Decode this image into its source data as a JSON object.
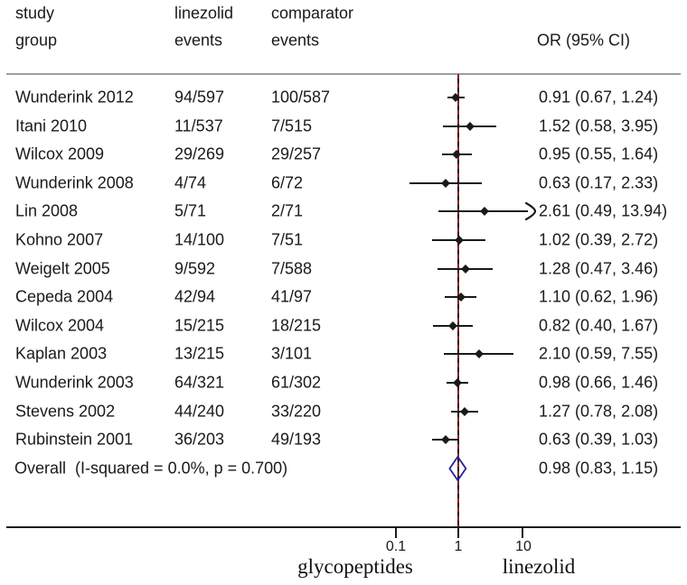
{
  "header": {
    "study_line1": "study",
    "study_line2": "group",
    "linezolid_line1": "linezolid",
    "linezolid_line2": "events",
    "comparator_line1": "comparator",
    "comparator_line2": "events",
    "or_header": "OR (95% CI)"
  },
  "chart_data": {
    "type": "forest",
    "effect_measure": "OR",
    "x_axis": {
      "scale": "log10",
      "tick_values": [
        0.1,
        1,
        10
      ],
      "tick_labels": [
        "0.1",
        "1",
        "10"
      ],
      "null_line_value": 1,
      "left_label": "glycopeptides",
      "right_label": "linezolid"
    },
    "studies": [
      {
        "name": "Wunderink 2012",
        "linezolid": "94/597",
        "comparator": "100/587",
        "or": 0.91,
        "ci_low": 0.67,
        "ci_high": 1.24,
        "or_label": "0.91 (0.67, 1.24)"
      },
      {
        "name": "Itani 2010",
        "linezolid": "11/537",
        "comparator": "7/515",
        "or": 1.52,
        "ci_low": 0.58,
        "ci_high": 3.95,
        "or_label": "1.52 (0.58, 3.95)"
      },
      {
        "name": "Wilcox 2009",
        "linezolid": "29/269",
        "comparator": "29/257",
        "or": 0.95,
        "ci_low": 0.55,
        "ci_high": 1.64,
        "or_label": "0.95 (0.55, 1.64)"
      },
      {
        "name": "Wunderink 2008",
        "linezolid": "4/74",
        "comparator": "6/72",
        "or": 0.63,
        "ci_low": 0.17,
        "ci_high": 2.33,
        "or_label": "0.63 (0.17, 2.33)"
      },
      {
        "name": "Lin 2008",
        "linezolid": "5/71",
        "comparator": "2/71",
        "or": 2.61,
        "ci_low": 0.49,
        "ci_high": 13.94,
        "or_label": "2.61 (0.49, 13.94)",
        "ci_clipped_right": true
      },
      {
        "name": "Kohno 2007",
        "linezolid": "14/100",
        "comparator": "7/51",
        "or": 1.02,
        "ci_low": 0.39,
        "ci_high": 2.72,
        "or_label": "1.02 (0.39, 2.72)"
      },
      {
        "name": "Weigelt 2005",
        "linezolid": "9/592",
        "comparator": "7/588",
        "or": 1.28,
        "ci_low": 0.47,
        "ci_high": 3.46,
        "or_label": "1.28 (0.47, 3.46)"
      },
      {
        "name": "Cepeda 2004",
        "linezolid": "42/94",
        "comparator": "41/97",
        "or": 1.1,
        "ci_low": 0.62,
        "ci_high": 1.96,
        "or_label": "1.10 (0.62, 1.96)"
      },
      {
        "name": "Wilcox 2004",
        "linezolid": "15/215",
        "comparator": "18/215",
        "or": 0.82,
        "ci_low": 0.4,
        "ci_high": 1.67,
        "or_label": "0.82 (0.40, 1.67)"
      },
      {
        "name": "Kaplan 2003",
        "linezolid": "13/215",
        "comparator": "3/101",
        "or": 2.1,
        "ci_low": 0.59,
        "ci_high": 7.55,
        "or_label": "2.10 (0.59, 7.55)"
      },
      {
        "name": "Wunderink 2003",
        "linezolid": "64/321",
        "comparator": "61/302",
        "or": 0.98,
        "ci_low": 0.66,
        "ci_high": 1.46,
        "or_label": "0.98 (0.66, 1.46)"
      },
      {
        "name": "Stevens 2002",
        "linezolid": "44/240",
        "comparator": "33/220",
        "or": 1.27,
        "ci_low": 0.78,
        "ci_high": 2.08,
        "or_label": "1.27 (0.78, 2.08)"
      },
      {
        "name": "Rubinstein 2001",
        "linezolid": "36/203",
        "comparator": "49/193",
        "or": 0.63,
        "ci_low": 0.39,
        "ci_high": 1.03,
        "or_label": "0.63 (0.39, 1.03)"
      }
    ],
    "overall": {
      "name": "Overall  (I-squared = 0.0%, p = 0.700)",
      "or": 0.98,
      "ci_low": 0.83,
      "ci_high": 1.15,
      "or_label": "0.98 (0.83, 1.15)"
    }
  },
  "colors": {
    "text": "#1a1a1a",
    "line": "#1a1a1a",
    "header_rule": "#9e9e9e",
    "overall_dashed_line": "#8f1a1a",
    "diamond_outline": "#23239b"
  }
}
